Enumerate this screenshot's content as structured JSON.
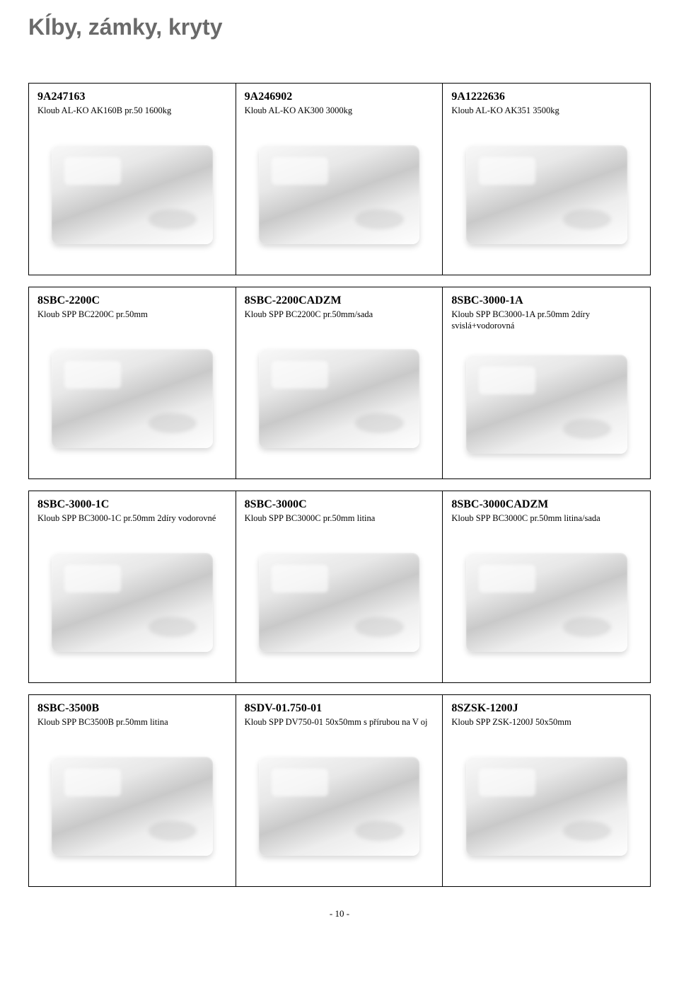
{
  "title": "Kĺby, zámky, kryty",
  "page_number": "- 10 -",
  "rows": [
    [
      {
        "code": "9A247163",
        "desc": "Kloub AL-KO AK160B pr.50 1600kg"
      },
      {
        "code": "9A246902",
        "desc": "Kloub AL-KO AK300 3000kg"
      },
      {
        "code": "9A1222636",
        "desc": "Kloub AL-KO AK351 3500kg"
      }
    ],
    [
      {
        "code": "8SBC-2200C",
        "desc": "Kloub SPP BC2200C pr.50mm"
      },
      {
        "code": "8SBC-2200CADZM",
        "desc": "Kloub SPP BC2200C pr.50mm/sada"
      },
      {
        "code": "8SBC-3000-1A",
        "desc": "Kloub SPP BC3000-1A pr.50mm 2díry svislá+vodorovná"
      }
    ],
    [
      {
        "code": "8SBC-3000-1C",
        "desc": "Kloub SPP BC3000-1C pr.50mm 2díry vodorovné"
      },
      {
        "code": "8SBC-3000C",
        "desc": "Kloub SPP BC3000C pr.50mm litina"
      },
      {
        "code": "8SBC-3000CADZM",
        "desc": "Kloub SPP BC3000C pr.50mm litina/sada"
      }
    ],
    [
      {
        "code": "8SBC-3500B",
        "desc": "Kloub SPP BC3500B pr.50mm litina"
      },
      {
        "code": "8SDV-01.750-01",
        "desc": "Kloub SPP DV750-01 50x50mm s přírubou na V oj"
      },
      {
        "code": "8SZSK-1200J",
        "desc": "Kloub SPP ZSK-1200J 50x50mm"
      }
    ]
  ]
}
